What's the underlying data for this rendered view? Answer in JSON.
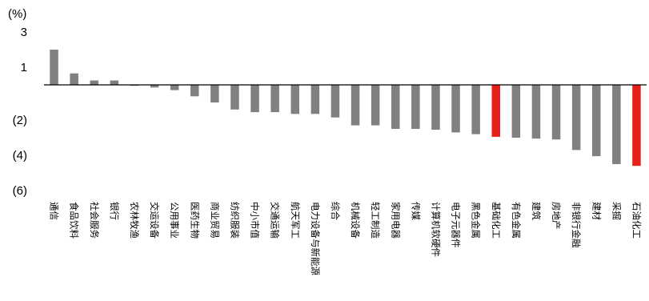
{
  "chart_data": {
    "type": "bar",
    "unit_label": "(%)",
    "ylim": [
      -6,
      3
    ],
    "yticks": [
      3,
      1,
      -2,
      -4,
      -6
    ],
    "ytick_labels": [
      "3",
      "1",
      "(2)",
      "(4)",
      "(6)"
    ],
    "grid": false,
    "legend": "none",
    "colors": {
      "default": "#808080",
      "highlight": "#e8201a"
    },
    "highlight": [
      "基础化工",
      "石油化工"
    ],
    "categories": [
      "通信",
      "食品饮料",
      "社会服务",
      "银行",
      "农林牧渔",
      "交运设备",
      "公用事业",
      "医药生物",
      "商业贸易",
      "纺织服装",
      "中小市值",
      "交通运输",
      "航天军工",
      "电力设备与新能源",
      "综合",
      "机械设备",
      "轻工制造",
      "家用电器",
      "传媒",
      "计算机软硬件",
      "电子元器件",
      "黑色金属",
      "基础化工",
      "有色金属",
      "建筑",
      "房地产",
      "非银行金融",
      "建材",
      "采掘",
      "石油化工"
    ],
    "values": [
      2.0,
      0.65,
      0.25,
      0.25,
      0.0,
      -0.15,
      -0.3,
      -0.65,
      -1.0,
      -1.4,
      -1.55,
      -1.55,
      -1.65,
      -1.65,
      -1.85,
      -2.3,
      -2.3,
      -2.5,
      -2.5,
      -2.55,
      -2.7,
      -2.8,
      -2.95,
      -3.0,
      -3.05,
      -3.1,
      -3.7,
      -4.05,
      -4.5,
      -4.6
    ]
  }
}
